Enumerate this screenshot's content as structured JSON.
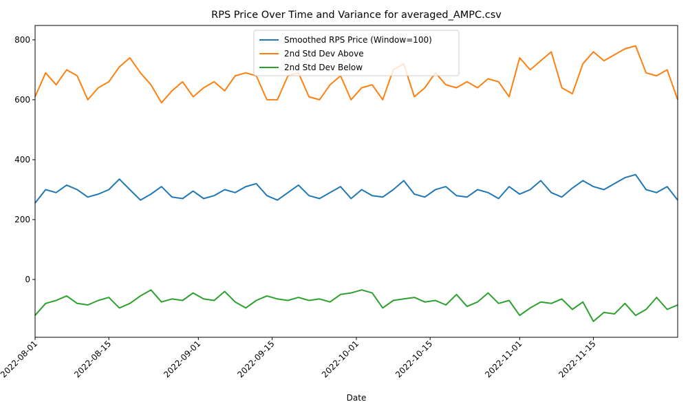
{
  "chart_data": {
    "type": "line",
    "title": "RPS Price Over Time and Variance for averaged_AMPC.csv",
    "x_label": "Date",
    "x": [
      "2022-08-01",
      "2022-08-03",
      "2022-08-05",
      "2022-08-07",
      "2022-08-09",
      "2022-08-11",
      "2022-08-13",
      "2022-08-15",
      "2022-08-17",
      "2022-08-19",
      "2022-08-21",
      "2022-08-23",
      "2022-08-25",
      "2022-08-27",
      "2022-08-29",
      "2022-08-31",
      "2022-09-02",
      "2022-09-04",
      "2022-09-06",
      "2022-09-08",
      "2022-09-10",
      "2022-09-12",
      "2022-09-14",
      "2022-09-16",
      "2022-09-18",
      "2022-09-20",
      "2022-09-22",
      "2022-09-24",
      "2022-09-26",
      "2022-09-28",
      "2022-09-30",
      "2022-10-02",
      "2022-10-04",
      "2022-10-06",
      "2022-10-08",
      "2022-10-10",
      "2022-10-12",
      "2022-10-14",
      "2022-10-16",
      "2022-10-18",
      "2022-10-20",
      "2022-10-22",
      "2022-10-24",
      "2022-10-26",
      "2022-10-28",
      "2022-10-30",
      "2022-11-01",
      "2022-11-03",
      "2022-11-05",
      "2022-11-07",
      "2022-11-09",
      "2022-11-11",
      "2022-11-13",
      "2022-11-15",
      "2022-11-17",
      "2022-11-19",
      "2022-11-21",
      "2022-11-23",
      "2022-11-25",
      "2022-11-27",
      "2022-11-29",
      "2022-12-01"
    ],
    "series": [
      {
        "name": "Smoothed RPS Price (Window=100)",
        "color": "#1f77b4",
        "values": [
          255,
          300,
          290,
          315,
          300,
          275,
          285,
          300,
          335,
          300,
          265,
          285,
          310,
          275,
          270,
          295,
          270,
          280,
          300,
          290,
          310,
          320,
          280,
          265,
          290,
          315,
          280,
          270,
          290,
          310,
          270,
          300,
          280,
          275,
          300,
          330,
          285,
          275,
          300,
          310,
          280,
          275,
          300,
          290,
          270,
          310,
          285,
          300,
          330,
          290,
          275,
          305,
          330,
          310,
          300,
          320,
          340,
          350,
          300,
          290,
          310,
          265
        ]
      },
      {
        "name": "2nd Std Dev Above",
        "color": "#ff7f0e",
        "values": [
          610,
          690,
          650,
          700,
          680,
          600,
          640,
          660,
          710,
          740,
          690,
          650,
          590,
          630,
          660,
          610,
          640,
          660,
          630,
          680,
          690,
          680,
          600,
          600,
          680,
          690,
          610,
          600,
          650,
          680,
          600,
          640,
          650,
          600,
          700,
          720,
          610,
          640,
          690,
          650,
          640,
          660,
          640,
          670,
          660,
          610,
          740,
          700,
          730,
          760,
          640,
          620,
          720,
          760,
          730,
          750,
          770,
          780,
          690,
          680,
          700,
          600
        ]
      },
      {
        "name": "2nd Std Dev Below",
        "color": "#2ca02c",
        "values": [
          -120,
          -80,
          -70,
          -55,
          -80,
          -85,
          -70,
          -60,
          -95,
          -80,
          -55,
          -35,
          -75,
          -65,
          -70,
          -45,
          -65,
          -70,
          -40,
          -75,
          -95,
          -70,
          -55,
          -65,
          -70,
          -60,
          -70,
          -65,
          -75,
          -50,
          -45,
          -35,
          -45,
          -95,
          -70,
          -65,
          -60,
          -75,
          -70,
          -85,
          -50,
          -90,
          -75,
          -45,
          -80,
          -70,
          -120,
          -95,
          -75,
          -80,
          -65,
          -100,
          -75,
          -140,
          -110,
          -115,
          -80,
          -120,
          -100,
          -60,
          -100,
          -85
        ]
      }
    ],
    "xlim": [
      "2022-08-01",
      "2022-12-01"
    ],
    "xticks": [
      "2022-08-01",
      "2022-08-15",
      "2022-09-01",
      "2022-09-15",
      "2022-10-01",
      "2022-10-15",
      "2022-11-01",
      "2022-11-15"
    ],
    "ylim": [
      -193,
      848
    ],
    "yticks": [
      0,
      200,
      400,
      600,
      800
    ],
    "grid": false,
    "legend": "upper center"
  }
}
